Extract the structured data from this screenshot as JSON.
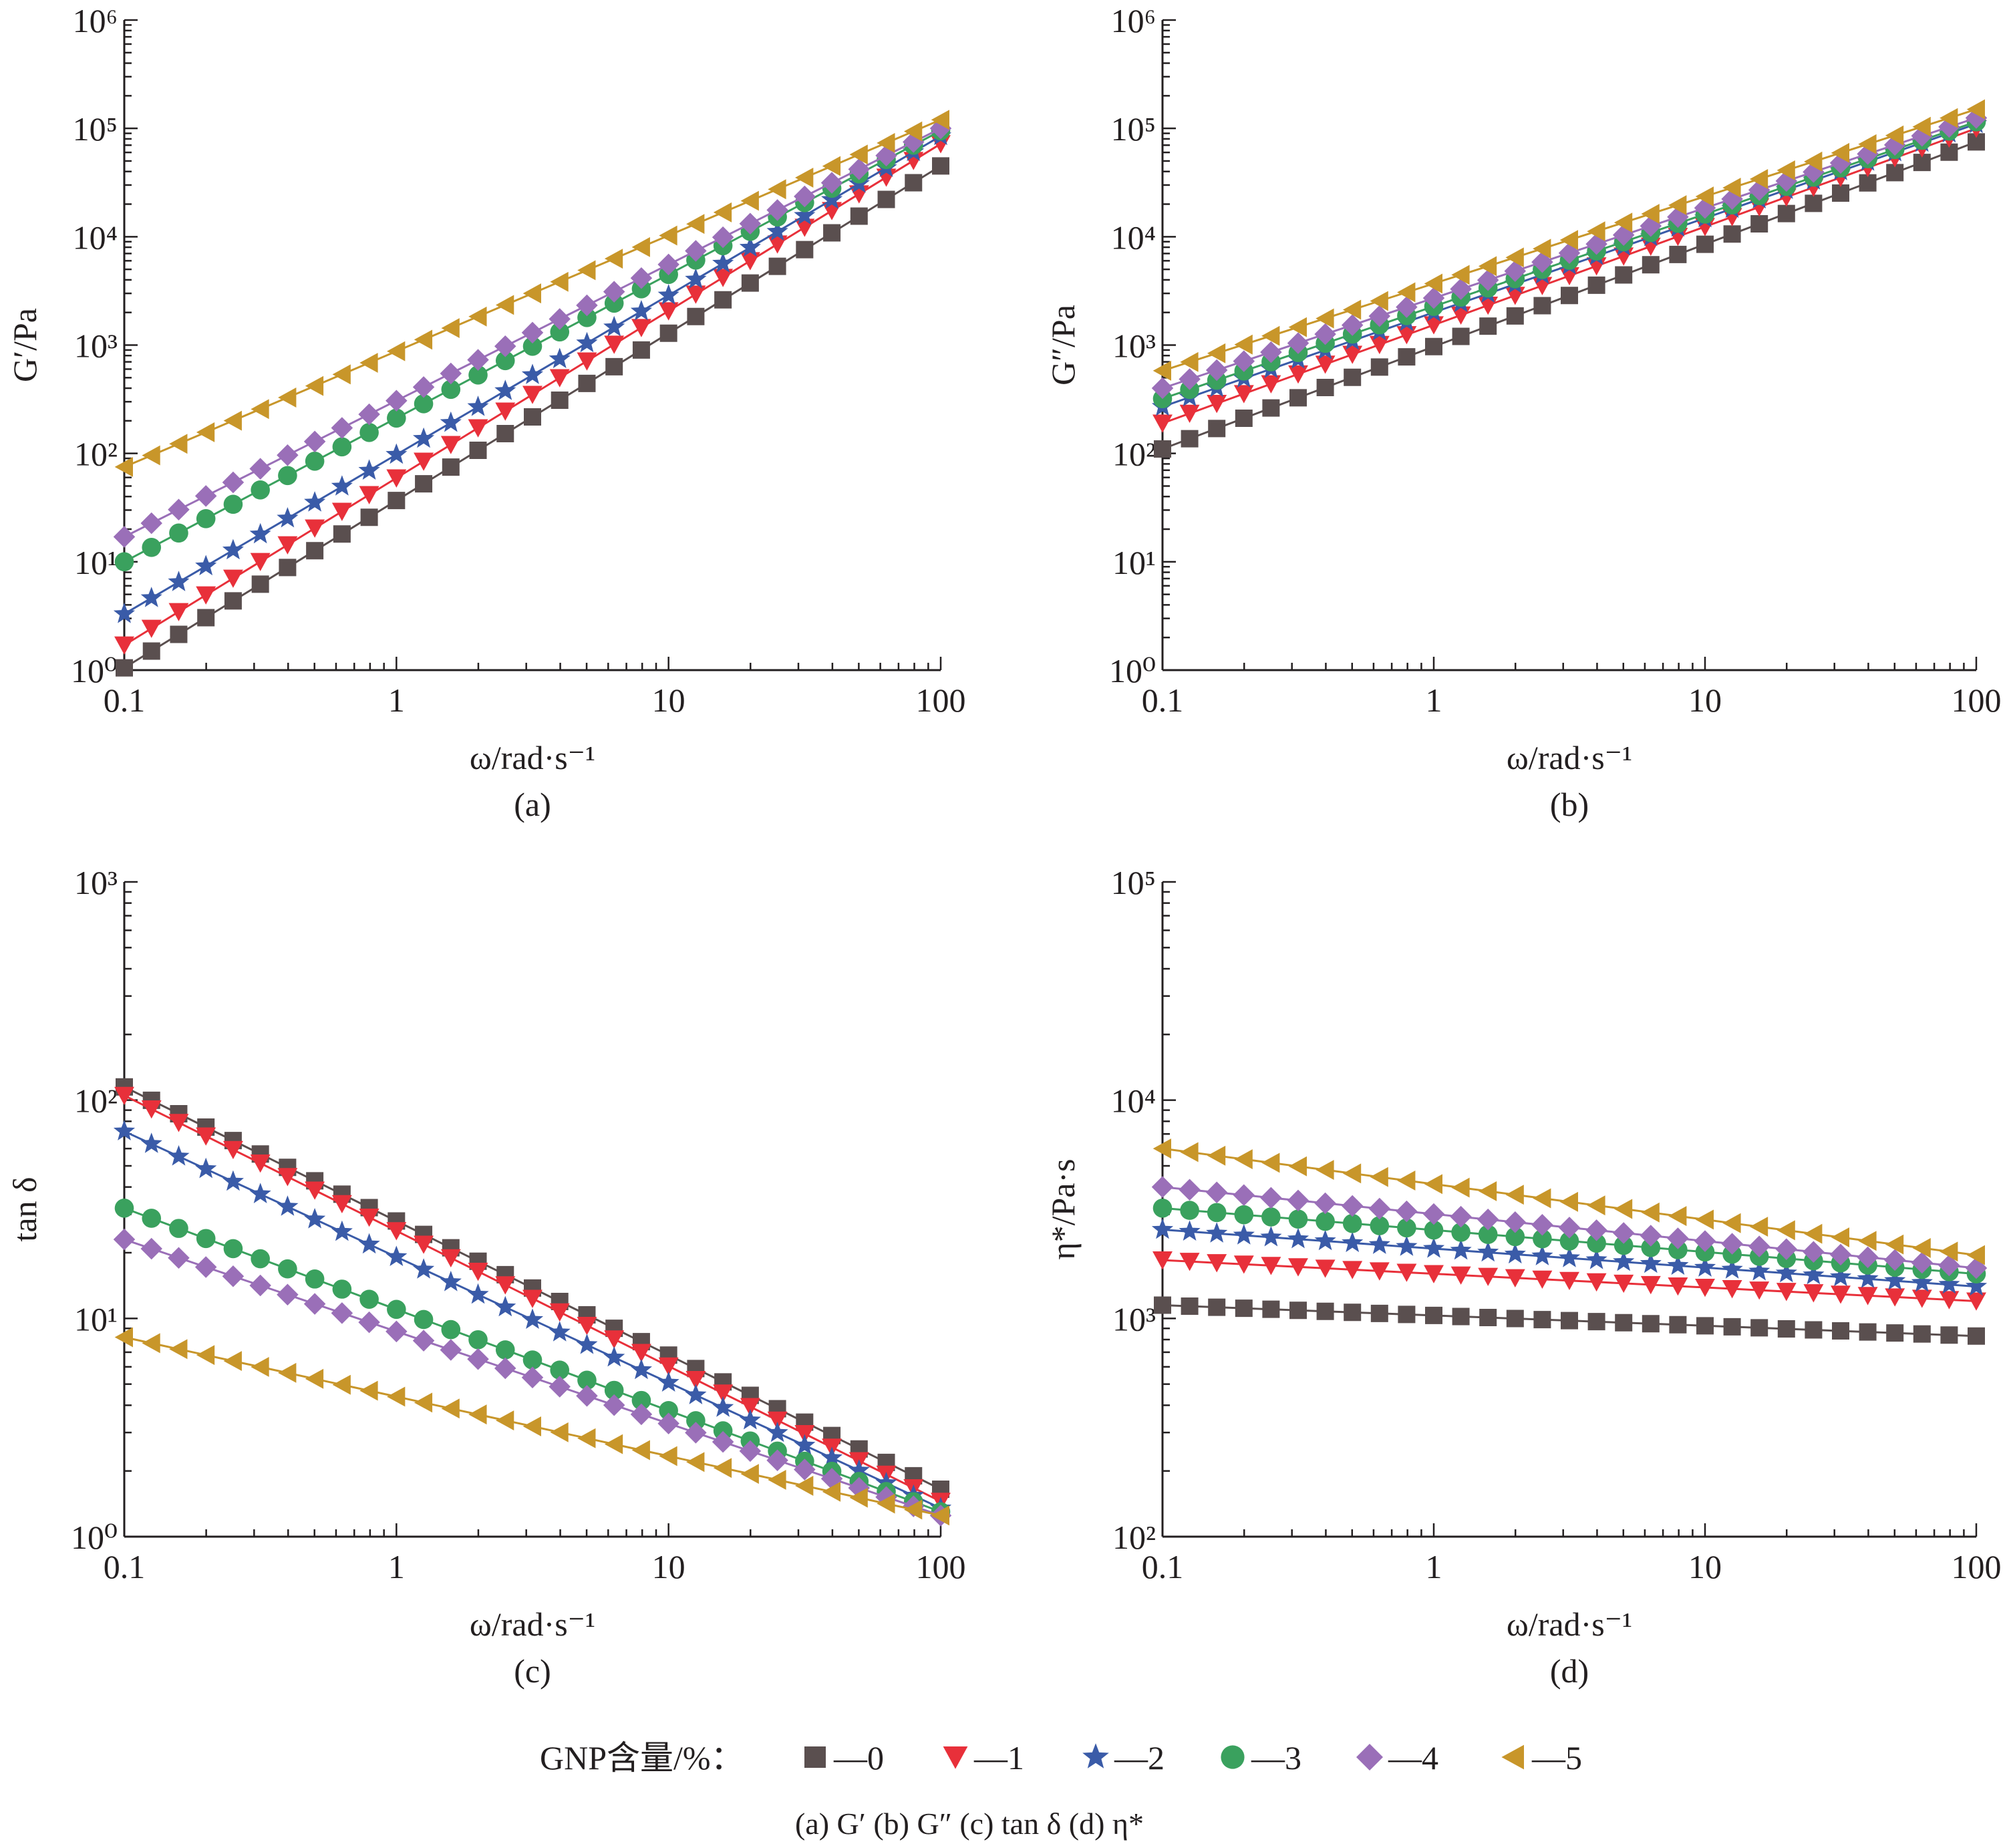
{
  "chart_data": [
    {
      "type": "scatter",
      "panel_label": "(a)",
      "ylabel": "G′/Pa",
      "xlabel": "ω/rad·s⁻¹",
      "xscale": "log",
      "yscale": "log",
      "xlim": [
        0.1,
        100
      ],
      "ylim": [
        1,
        1000000
      ],
      "grid": false,
      "series": [
        {
          "name": "0",
          "y0": 1.05,
          "y1": 45000
        },
        {
          "name": "1",
          "y0": 1.7,
          "y1": 72000
        },
        {
          "name": "2",
          "y0": 3.3,
          "y1": 85000
        },
        {
          "name": "3",
          "y0": 10,
          "y1": 95000
        },
        {
          "name": "4",
          "y0": 17,
          "y1": 100000
        },
        {
          "name": "5",
          "y0": 75,
          "y1": 120000
        }
      ]
    },
    {
      "type": "scatter",
      "panel_label": "(b)",
      "ylabel": "G″/Pa",
      "xlabel": "ω/rad·s⁻¹",
      "xscale": "log",
      "yscale": "log",
      "xlim": [
        0.1,
        100
      ],
      "ylim": [
        1,
        1000000
      ],
      "grid": false,
      "series": [
        {
          "name": "0",
          "y0": 110,
          "y1": 75000
        },
        {
          "name": "1",
          "y0": 190,
          "y1": 100000
        },
        {
          "name": "2",
          "y0": 270,
          "y1": 110000
        },
        {
          "name": "3",
          "y0": 320,
          "y1": 115000
        },
        {
          "name": "4",
          "y0": 400,
          "y1": 125000
        },
        {
          "name": "5",
          "y0": 580,
          "y1": 150000
        }
      ]
    },
    {
      "type": "scatter",
      "panel_label": "(c)",
      "ylabel": "tan δ",
      "xlabel": "ω/rad·s⁻¹",
      "xscale": "log",
      "yscale": "log",
      "xlim": [
        0.1,
        100
      ],
      "ylim": [
        1,
        1000
      ],
      "grid": false,
      "series": [
        {
          "name": "0",
          "y0": 115,
          "y1": 1.65
        },
        {
          "name": "1",
          "y0": 105,
          "y1": 1.45
        },
        {
          "name": "2",
          "y0": 72,
          "y1": 1.35
        },
        {
          "name": "3",
          "y0": 32,
          "y1": 1.3
        },
        {
          "name": "4",
          "y0": 23,
          "y1": 1.25
        },
        {
          "name": "5",
          "y0": 8.2,
          "y1": 1.25
        }
      ]
    },
    {
      "type": "scatter",
      "panel_label": "(d)",
      "ylabel": "η*/Pa·s",
      "xlabel": "ω/rad·s⁻¹",
      "xscale": "log",
      "yscale": "log",
      "xlim": [
        0.1,
        100
      ],
      "ylim": [
        100,
        100000
      ],
      "grid": false,
      "series": [
        {
          "name": "0",
          "y0": 1150,
          "y1": 830
        },
        {
          "name": "1",
          "y0": 1850,
          "y1": 1200
        },
        {
          "name": "2",
          "y0": 2550,
          "y1": 1400
        },
        {
          "name": "3",
          "y0": 3200,
          "y1": 1600
        },
        {
          "name": "4",
          "y0": 4000,
          "y1": 1700
        },
        {
          "name": "5",
          "y0": 6000,
          "y1": 1950
        }
      ]
    }
  ],
  "x_tick_labels": [
    "0.1",
    "1",
    "10",
    "100"
  ],
  "legend": {
    "title": "GNP含量/%：",
    "items": [
      "—0",
      "—1",
      "—2",
      "—3",
      "—4",
      "—5"
    ]
  },
  "series_style": [
    {
      "marker": "square",
      "color": "#5a4f4f"
    },
    {
      "marker": "triangle-down",
      "color": "#e8303a"
    },
    {
      "marker": "star",
      "color": "#3a5ba8"
    },
    {
      "marker": "circle",
      "color": "#3aa15e"
    },
    {
      "marker": "diamond",
      "color": "#9a6fb8"
    },
    {
      "marker": "triangle-left",
      "color": "#c8962a"
    }
  ],
  "caption": "(a) G′   (b) G″   (c) tan δ   (d) η*"
}
